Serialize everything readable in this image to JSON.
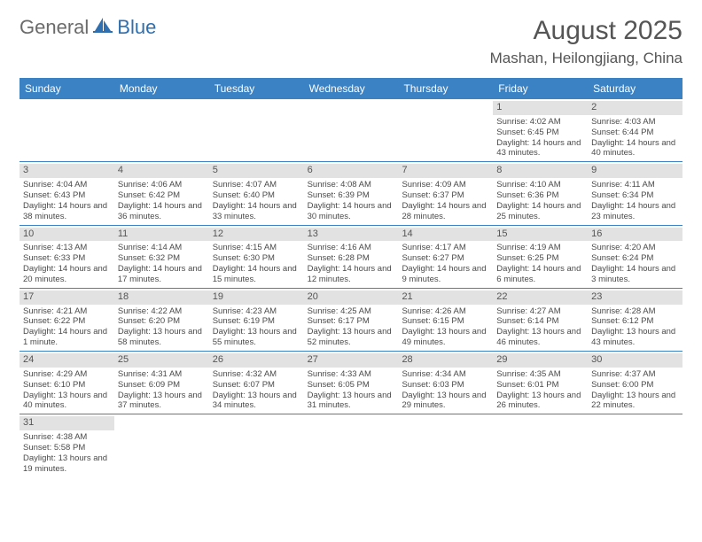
{
  "logo": {
    "part1": "General",
    "part2": "Blue"
  },
  "title": "August 2025",
  "location": "Mashan, Heilongjiang, China",
  "colors": {
    "header_bg": "#3b82c4",
    "header_text": "#ffffff",
    "daynum_bg": "#e2e2e2",
    "rule": "#3b82c4",
    "body_text": "#4a4a4a",
    "title_text": "#555555",
    "logo_gray": "#6b6b6b",
    "logo_blue": "#2f6fb0"
  },
  "day_headers": [
    "Sunday",
    "Monday",
    "Tuesday",
    "Wednesday",
    "Thursday",
    "Friday",
    "Saturday"
  ],
  "weeks": [
    [
      null,
      null,
      null,
      null,
      null,
      {
        "n": "1",
        "rise": "Sunrise: 4:02 AM",
        "set": "Sunset: 6:45 PM",
        "dl": "Daylight: 14 hours and 43 minutes."
      },
      {
        "n": "2",
        "rise": "Sunrise: 4:03 AM",
        "set": "Sunset: 6:44 PM",
        "dl": "Daylight: 14 hours and 40 minutes."
      }
    ],
    [
      {
        "n": "3",
        "rise": "Sunrise: 4:04 AM",
        "set": "Sunset: 6:43 PM",
        "dl": "Daylight: 14 hours and 38 minutes."
      },
      {
        "n": "4",
        "rise": "Sunrise: 4:06 AM",
        "set": "Sunset: 6:42 PM",
        "dl": "Daylight: 14 hours and 36 minutes."
      },
      {
        "n": "5",
        "rise": "Sunrise: 4:07 AM",
        "set": "Sunset: 6:40 PM",
        "dl": "Daylight: 14 hours and 33 minutes."
      },
      {
        "n": "6",
        "rise": "Sunrise: 4:08 AM",
        "set": "Sunset: 6:39 PM",
        "dl": "Daylight: 14 hours and 30 minutes."
      },
      {
        "n": "7",
        "rise": "Sunrise: 4:09 AM",
        "set": "Sunset: 6:37 PM",
        "dl": "Daylight: 14 hours and 28 minutes."
      },
      {
        "n": "8",
        "rise": "Sunrise: 4:10 AM",
        "set": "Sunset: 6:36 PM",
        "dl": "Daylight: 14 hours and 25 minutes."
      },
      {
        "n": "9",
        "rise": "Sunrise: 4:11 AM",
        "set": "Sunset: 6:34 PM",
        "dl": "Daylight: 14 hours and 23 minutes."
      }
    ],
    [
      {
        "n": "10",
        "rise": "Sunrise: 4:13 AM",
        "set": "Sunset: 6:33 PM",
        "dl": "Daylight: 14 hours and 20 minutes."
      },
      {
        "n": "11",
        "rise": "Sunrise: 4:14 AM",
        "set": "Sunset: 6:32 PM",
        "dl": "Daylight: 14 hours and 17 minutes."
      },
      {
        "n": "12",
        "rise": "Sunrise: 4:15 AM",
        "set": "Sunset: 6:30 PM",
        "dl": "Daylight: 14 hours and 15 minutes."
      },
      {
        "n": "13",
        "rise": "Sunrise: 4:16 AM",
        "set": "Sunset: 6:28 PM",
        "dl": "Daylight: 14 hours and 12 minutes."
      },
      {
        "n": "14",
        "rise": "Sunrise: 4:17 AM",
        "set": "Sunset: 6:27 PM",
        "dl": "Daylight: 14 hours and 9 minutes."
      },
      {
        "n": "15",
        "rise": "Sunrise: 4:19 AM",
        "set": "Sunset: 6:25 PM",
        "dl": "Daylight: 14 hours and 6 minutes."
      },
      {
        "n": "16",
        "rise": "Sunrise: 4:20 AM",
        "set": "Sunset: 6:24 PM",
        "dl": "Daylight: 14 hours and 3 minutes."
      }
    ],
    [
      {
        "n": "17",
        "rise": "Sunrise: 4:21 AM",
        "set": "Sunset: 6:22 PM",
        "dl": "Daylight: 14 hours and 1 minute."
      },
      {
        "n": "18",
        "rise": "Sunrise: 4:22 AM",
        "set": "Sunset: 6:20 PM",
        "dl": "Daylight: 13 hours and 58 minutes."
      },
      {
        "n": "19",
        "rise": "Sunrise: 4:23 AM",
        "set": "Sunset: 6:19 PM",
        "dl": "Daylight: 13 hours and 55 minutes."
      },
      {
        "n": "20",
        "rise": "Sunrise: 4:25 AM",
        "set": "Sunset: 6:17 PM",
        "dl": "Daylight: 13 hours and 52 minutes."
      },
      {
        "n": "21",
        "rise": "Sunrise: 4:26 AM",
        "set": "Sunset: 6:15 PM",
        "dl": "Daylight: 13 hours and 49 minutes."
      },
      {
        "n": "22",
        "rise": "Sunrise: 4:27 AM",
        "set": "Sunset: 6:14 PM",
        "dl": "Daylight: 13 hours and 46 minutes."
      },
      {
        "n": "23",
        "rise": "Sunrise: 4:28 AM",
        "set": "Sunset: 6:12 PM",
        "dl": "Daylight: 13 hours and 43 minutes."
      }
    ],
    [
      {
        "n": "24",
        "rise": "Sunrise: 4:29 AM",
        "set": "Sunset: 6:10 PM",
        "dl": "Daylight: 13 hours and 40 minutes."
      },
      {
        "n": "25",
        "rise": "Sunrise: 4:31 AM",
        "set": "Sunset: 6:09 PM",
        "dl": "Daylight: 13 hours and 37 minutes."
      },
      {
        "n": "26",
        "rise": "Sunrise: 4:32 AM",
        "set": "Sunset: 6:07 PM",
        "dl": "Daylight: 13 hours and 34 minutes."
      },
      {
        "n": "27",
        "rise": "Sunrise: 4:33 AM",
        "set": "Sunset: 6:05 PM",
        "dl": "Daylight: 13 hours and 31 minutes."
      },
      {
        "n": "28",
        "rise": "Sunrise: 4:34 AM",
        "set": "Sunset: 6:03 PM",
        "dl": "Daylight: 13 hours and 29 minutes."
      },
      {
        "n": "29",
        "rise": "Sunrise: 4:35 AM",
        "set": "Sunset: 6:01 PM",
        "dl": "Daylight: 13 hours and 26 minutes."
      },
      {
        "n": "30",
        "rise": "Sunrise: 4:37 AM",
        "set": "Sunset: 6:00 PM",
        "dl": "Daylight: 13 hours and 22 minutes."
      }
    ],
    [
      {
        "n": "31",
        "rise": "Sunrise: 4:38 AM",
        "set": "Sunset: 5:58 PM",
        "dl": "Daylight: 13 hours and 19 minutes."
      },
      null,
      null,
      null,
      null,
      null,
      null
    ]
  ]
}
